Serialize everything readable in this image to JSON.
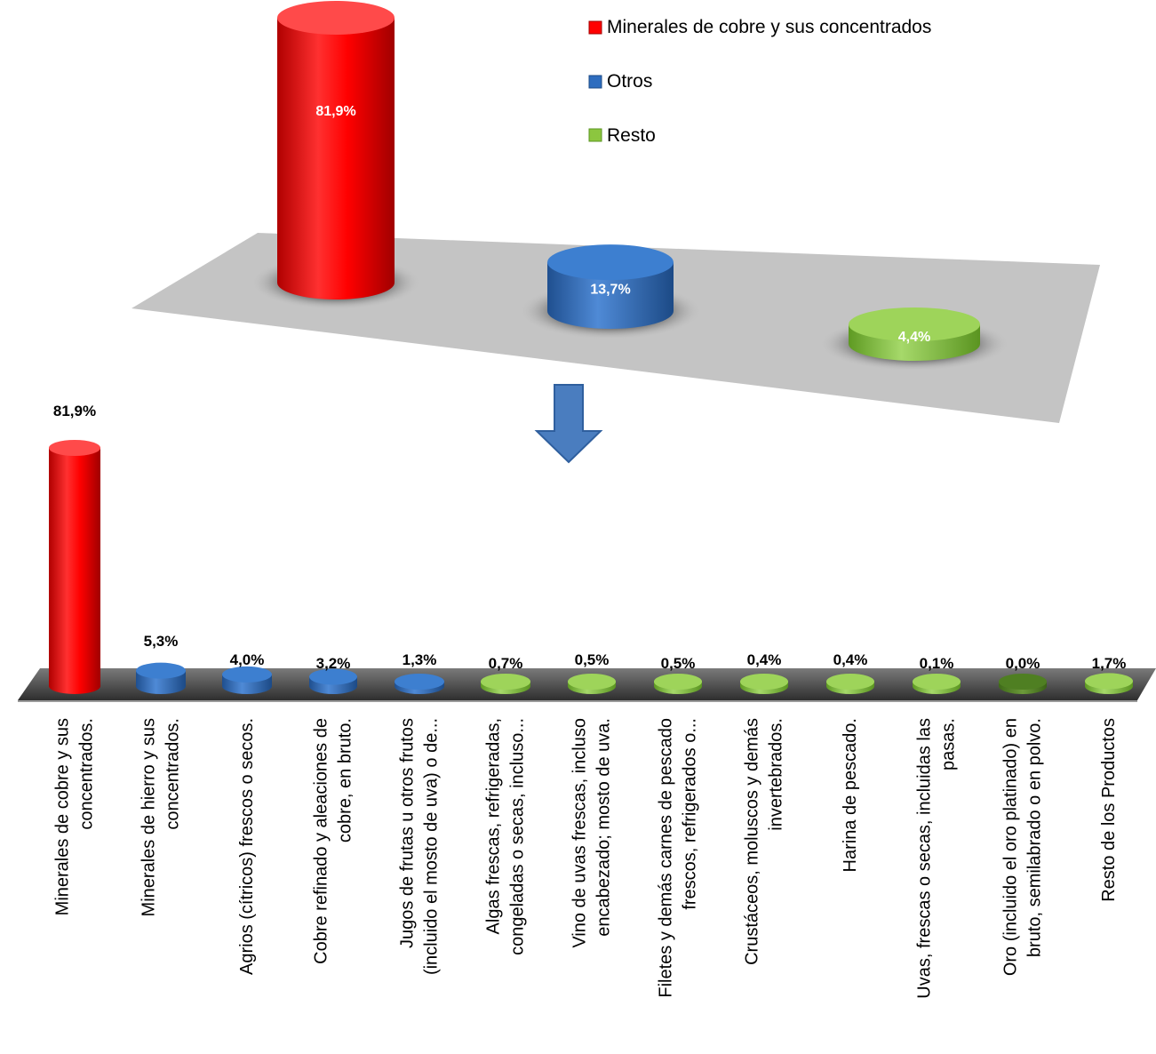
{
  "chart_data": [
    {
      "type": "bar",
      "style": "3d-cylinder",
      "categories": [
        "Minerales de cobre y sus concentrados",
        "Otros",
        "Resto"
      ],
      "values": [
        81.9,
        13.7,
        4.4
      ],
      "data_labels": [
        "81,9%",
        "13,7%",
        "4,4%"
      ],
      "legend": {
        "position": "top-right",
        "entries": [
          {
            "name": "Minerales de cobre y sus concentrados",
            "color": "#ff0000"
          },
          {
            "name": "Otros",
            "color": "#2e6dbf"
          },
          {
            "name": "Resto",
            "color": "#8cc63f"
          }
        ]
      },
      "grid": false
    },
    {
      "type": "bar",
      "style": "3d-cylinder",
      "categories": [
        "Minerales de cobre y sus concentrados.",
        "Minerales de hierro y sus concentrados.",
        "Agrios (cítricos) frescos o secos.",
        "Cobre refinado y aleaciones de cobre, en bruto.",
        "Jugos de frutas u otros frutos (incluido el mosto de uva) o de...",
        "Algas frescas, refrigeradas, congeladas o secas, incluso...",
        "Vino de uvas frescas, incluso encabezado; mosto de uva.",
        "Filetes y demás carnes de pescado frescos, refrigerados o...",
        "Crustáceos, moluscos y demás invertebrados.",
        "Harina de pescado.",
        "Uvas, frescas o secas, incluidas las pasas.",
        "Oro (incluido el oro platinado) en bruto, semilabrado o en polvo.",
        "Resto de los Productos"
      ],
      "category_label_lines": [
        [
          "Minerales de cobre y sus",
          "concentrados."
        ],
        [
          "Minerales de hierro y sus",
          "concentrados."
        ],
        [
          "Agrios (cítricos) frescos o secos."
        ],
        [
          "Cobre refinado y aleaciones de",
          "cobre, en bruto."
        ],
        [
          "Jugos de frutas u otros frutos",
          "(incluido el mosto de uva) o de..."
        ],
        [
          "Algas frescas, refrigeradas,",
          "congeladas o secas, incluso..."
        ],
        [
          "Vino de uvas frescas, incluso",
          "encabezado; mosto de uva."
        ],
        [
          "Filetes y demás carnes de pescado",
          "frescos, refrigerados o..."
        ],
        [
          "Crustáceos, moluscos y demás",
          "invertebrados."
        ],
        [
          "Harina de pescado."
        ],
        [
          "Uvas, frescas o secas, incluidas las",
          "pasas."
        ],
        [
          "Oro (incluido el oro platinado) en",
          "bruto, semilabrado o en polvo."
        ],
        [
          "Resto de los Productos"
        ]
      ],
      "values": [
        81.9,
        5.3,
        4.0,
        3.2,
        1.3,
        0.7,
        0.5,
        0.5,
        0.4,
        0.4,
        0.1,
        0.0,
        1.7
      ],
      "data_labels": [
        "81,9%",
        "5,3%",
        "4,0%",
        "3,2%",
        "1,3%",
        "0,7%",
        "0,5%",
        "0,5%",
        "0,4%",
        "0,4%",
        "0,1%",
        "0,0%",
        "1,7%"
      ],
      "groups": [
        "Minerales de cobre y sus concentrados",
        "Otros",
        "Otros",
        "Otros",
        "Otros",
        "Resto",
        "Resto",
        "Resto",
        "Resto",
        "Resto",
        "Resto",
        "Resto",
        "Resto"
      ],
      "grid": false
    }
  ],
  "colors": {
    "red": "#ff0000",
    "blue": "#2e6dbf",
    "green": "#8cc63f",
    "dark_green": "#5a8a2a",
    "floor_top": "#c4c4c4",
    "floor_bottom": "#3f3f3f",
    "arrow": "#4a7dbf"
  },
  "arrow_icon": "down-arrow-icon"
}
